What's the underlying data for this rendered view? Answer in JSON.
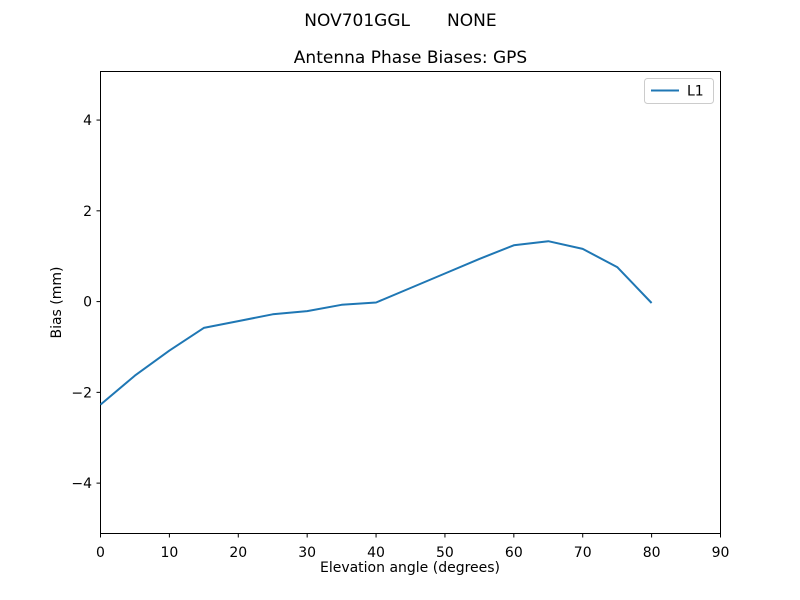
{
  "figure": {
    "suptitle": {
      "left": "NOV701GGL",
      "right": "NONE"
    }
  },
  "chart_data": {
    "type": "line",
    "title": "Antenna Phase Biases: GPS",
    "suptitle": "NOV701GGL        NONE",
    "xlabel": "Elevation angle (degrees)",
    "ylabel": "Bias (mm)",
    "xlim": [
      0,
      90
    ],
    "ylim": [
      -5.11,
      5.07
    ],
    "x_ticks": [
      0,
      10,
      20,
      30,
      40,
      50,
      60,
      70,
      80,
      90
    ],
    "y_ticks": [
      -4,
      -2,
      0,
      2,
      4
    ],
    "grid": false,
    "legend_position": "upper right",
    "x": [
      0,
      5,
      10,
      15,
      20,
      25,
      30,
      35,
      40,
      45,
      50,
      55,
      60,
      65,
      70,
      75,
      80
    ],
    "series": [
      {
        "name": "L1",
        "color": "#1f77b4",
        "values": [
          -2.27,
          -1.63,
          -1.08,
          -0.58,
          -0.43,
          -0.28,
          -0.21,
          -0.07,
          -0.02,
          0.3,
          0.62,
          0.94,
          1.24,
          1.33,
          1.16,
          0.76,
          -0.03
        ]
      }
    ]
  },
  "legend": {
    "entries": [
      {
        "label": "L1",
        "color": "#1f77b4"
      }
    ]
  },
  "colors": {
    "line": "#1f77b4",
    "text": "#000000",
    "spine": "#000000",
    "legend_border": "#cccccc",
    "background": "#ffffff"
  }
}
